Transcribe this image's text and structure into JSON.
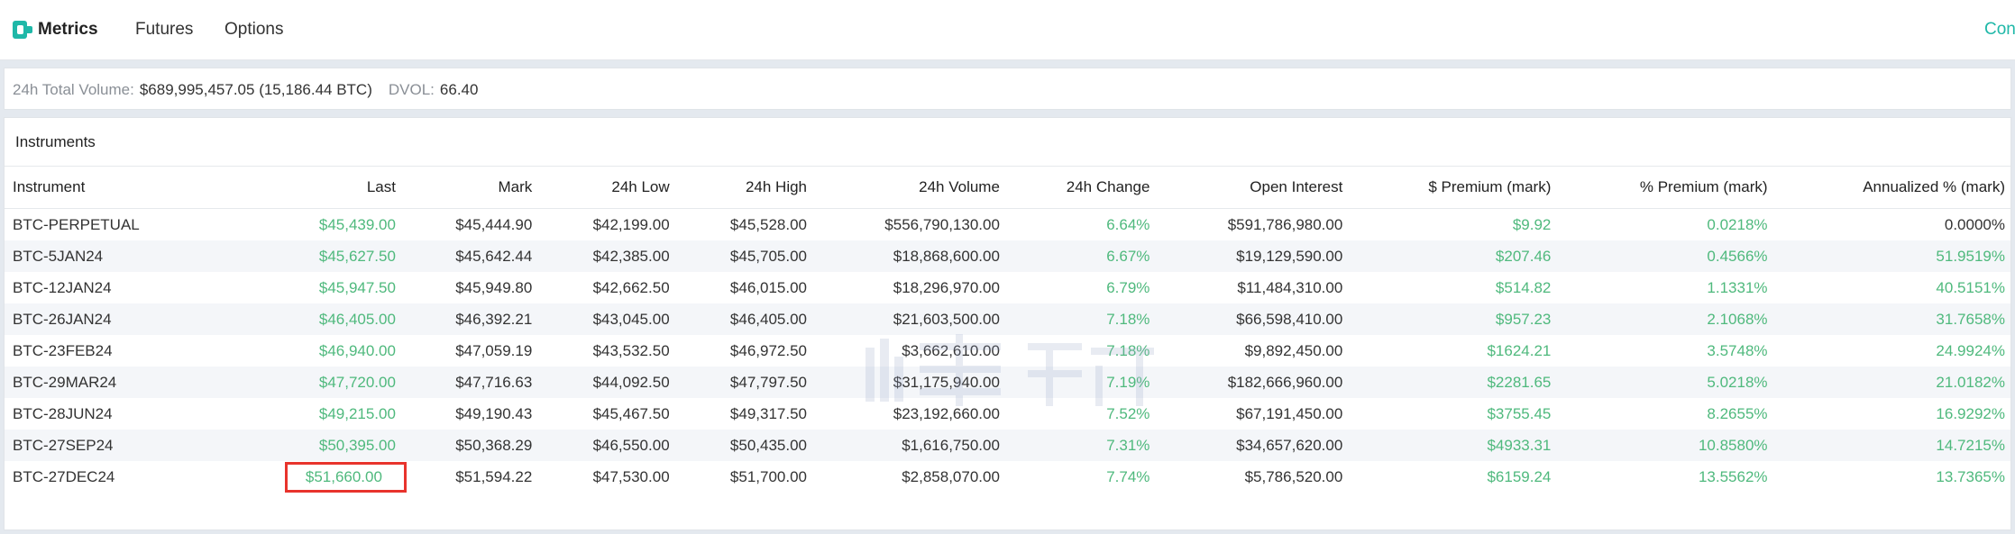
{
  "nav": {
    "brand": "Metrics",
    "futures": "Futures",
    "options": "Options",
    "right_partial": "Con"
  },
  "summary": {
    "volume_label": "24h Total Volume:",
    "volume_value": "$689,995,457.05 (15,186.44 BTC)",
    "dvol_label": "DVOL:",
    "dvol_value": "66.40"
  },
  "instruments": {
    "title": "Instruments",
    "columns": [
      "Instrument",
      "Last",
      "Mark",
      "24h Low",
      "24h High",
      "24h Volume",
      "24h Change",
      "Open Interest",
      "$ Premium (mark)",
      "% Premium (mark)",
      "Annualized % (mark)"
    ],
    "rows": [
      {
        "instrument": "BTC-PERPETUAL",
        "last": "$45,439.00",
        "mark": "$45,444.90",
        "low": "$42,199.00",
        "high": "$45,528.00",
        "volume": "$556,790,130.00",
        "change": "6.64%",
        "oi": "$591,786,980.00",
        "usd_premium": "$9.92",
        "pct_premium": "0.0218%",
        "annualized": "0.0000%"
      },
      {
        "instrument": "BTC-5JAN24",
        "last": "$45,627.50",
        "mark": "$45,642.44",
        "low": "$42,385.00",
        "high": "$45,705.00",
        "volume": "$18,868,600.00",
        "change": "6.67%",
        "oi": "$19,129,590.00",
        "usd_premium": "$207.46",
        "pct_premium": "0.4566%",
        "annualized": "51.9519%"
      },
      {
        "instrument": "BTC-12JAN24",
        "last": "$45,947.50",
        "mark": "$45,949.80",
        "low": "$42,662.50",
        "high": "$46,015.00",
        "volume": "$18,296,970.00",
        "change": "6.79%",
        "oi": "$11,484,310.00",
        "usd_premium": "$514.82",
        "pct_premium": "1.1331%",
        "annualized": "40.5151%"
      },
      {
        "instrument": "BTC-26JAN24",
        "last": "$46,405.00",
        "mark": "$46,392.21",
        "low": "$43,045.00",
        "high": "$46,405.00",
        "volume": "$21,603,500.00",
        "change": "7.18%",
        "oi": "$66,598,410.00",
        "usd_premium": "$957.23",
        "pct_premium": "2.1068%",
        "annualized": "31.7658%"
      },
      {
        "instrument": "BTC-23FEB24",
        "last": "$46,940.00",
        "mark": "$47,059.19",
        "low": "$43,532.50",
        "high": "$46,972.50",
        "volume": "$3,662,610.00",
        "change": "7.18%",
        "oi": "$9,892,450.00",
        "usd_premium": "$1624.21",
        "pct_premium": "3.5748%",
        "annualized": "24.9924%"
      },
      {
        "instrument": "BTC-29MAR24",
        "last": "$47,720.00",
        "mark": "$47,716.63",
        "low": "$44,092.50",
        "high": "$47,797.50",
        "volume": "$31,175,940.00",
        "change": "7.19%",
        "oi": "$182,666,960.00",
        "usd_premium": "$2281.65",
        "pct_premium": "5.0218%",
        "annualized": "21.0182%"
      },
      {
        "instrument": "BTC-28JUN24",
        "last": "$49,215.00",
        "mark": "$49,190.43",
        "low": "$45,467.50",
        "high": "$49,317.50",
        "volume": "$23,192,660.00",
        "change": "7.52%",
        "oi": "$67,191,450.00",
        "usd_premium": "$3755.45",
        "pct_premium": "8.2655%",
        "annualized": "16.9292%"
      },
      {
        "instrument": "BTC-27SEP24",
        "last": "$50,395.00",
        "mark": "$50,368.29",
        "low": "$46,550.00",
        "high": "$50,435.00",
        "volume": "$1,616,750.00",
        "change": "7.31%",
        "oi": "$34,657,620.00",
        "usd_premium": "$4933.31",
        "pct_premium": "10.8580%",
        "annualized": "14.7215%"
      },
      {
        "instrument": "BTC-27DEC24",
        "last": "$51,660.00",
        "mark": "$51,594.22",
        "low": "$47,530.00",
        "high": "$51,700.00",
        "volume": "$2,858,070.00",
        "change": "7.74%",
        "oi": "$5,786,520.00",
        "usd_premium": "$6159.24",
        "pct_premium": "13.5562%",
        "annualized": "13.7365%",
        "last_highlighted": true
      }
    ]
  },
  "colors": {
    "positive": "#4fb97d",
    "accent": "#1fb8a8",
    "highlight_box": "#e8332c"
  },
  "icons": {
    "logo": "deribit-logo-icon",
    "watermark": "watermark-logo"
  }
}
